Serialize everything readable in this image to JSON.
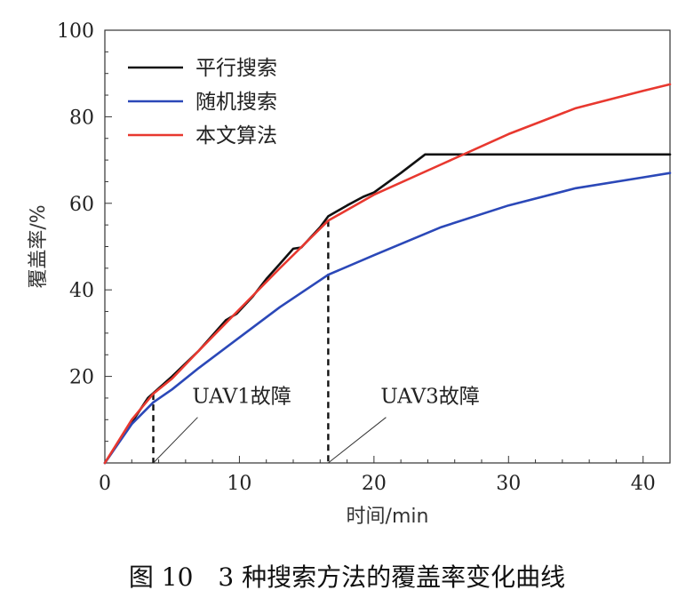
{
  "caption": "图 10　3 种搜索方法的覆盖率变化曲线",
  "chart_data": {
    "type": "line",
    "xlabel": "时间/min",
    "ylabel": "覆盖率/%",
    "xlim": [
      0,
      42
    ],
    "ylim": [
      0,
      100
    ],
    "xticks": [
      0,
      10,
      20,
      30,
      40
    ],
    "yticks": [
      20,
      40,
      60,
      80,
      100
    ],
    "grid": false,
    "legend_position": "top-left",
    "series": [
      {
        "name": "平行搜索",
        "color": "#111111",
        "x": [
          0,
          3.2,
          5,
          7,
          9,
          9.8,
          11,
          12,
          13,
          14,
          14.6,
          16,
          16.6,
          18,
          19.2,
          20,
          22,
          23.8,
          26,
          30,
          35,
          42
        ],
        "y": [
          0,
          15,
          20,
          26,
          33,
          34.5,
          38.5,
          42.5,
          46,
          49.5,
          49.8,
          54.5,
          57,
          59.5,
          61.5,
          62.5,
          67,
          71.3,
          71.3,
          71.3,
          71.3,
          71.3
        ]
      },
      {
        "name": "随机搜索",
        "color": "#2b48b8",
        "x": [
          0,
          2,
          3.6,
          5,
          7,
          10,
          13,
          16.6,
          20,
          25,
          30,
          35,
          40,
          42
        ],
        "y": [
          0,
          9,
          14,
          17,
          22,
          29,
          36,
          43.5,
          48,
          54.5,
          59.5,
          63.5,
          66,
          67
        ]
      },
      {
        "name": "本文算法",
        "color": "#e8382f",
        "x": [
          0,
          2,
          3.6,
          5,
          7,
          10,
          13,
          16.6,
          20,
          25,
          30,
          35,
          40,
          42
        ],
        "y": [
          0,
          10,
          16,
          19.5,
          26,
          35.5,
          45,
          56,
          62,
          69,
          76,
          82,
          86,
          87.5
        ]
      }
    ],
    "annotations": [
      {
        "text": "UAV1故障",
        "x": 3.6,
        "label_x": 6.5,
        "label_y": 13
      },
      {
        "text": "UAV3故障",
        "x": 16.6,
        "label_x": 20.5,
        "label_y": 13
      }
    ]
  }
}
